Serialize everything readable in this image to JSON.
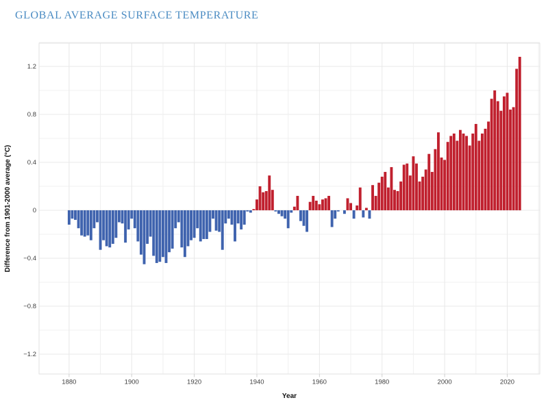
{
  "title": "GLOBAL AVERAGE SURFACE TEMPERATURE",
  "chart_data": {
    "type": "bar",
    "title": "GLOBAL AVERAGE SURFACE TEMPERATURE",
    "xlabel": "Year",
    "ylabel": "Difference from 1901-2000 average (°C)",
    "x_ticks": [
      1880,
      1900,
      1920,
      1940,
      1960,
      1980,
      2000,
      2020
    ],
    "y_ticks": [
      -1.2,
      -0.8,
      -0.4,
      0,
      0.4,
      0.8,
      1.2
    ],
    "xlim": [
      1870.4,
      2030.4
    ],
    "ylim": [
      -1.366,
      1.394
    ],
    "grid": true,
    "grid_step_x_years": 10,
    "grid_step_y_degrees": 0.2,
    "legend": "none",
    "years": [
      1880,
      1881,
      1882,
      1883,
      1884,
      1885,
      1886,
      1887,
      1888,
      1889,
      1890,
      1891,
      1892,
      1893,
      1894,
      1895,
      1896,
      1897,
      1898,
      1899,
      1900,
      1901,
      1902,
      1903,
      1904,
      1905,
      1906,
      1907,
      1908,
      1909,
      1910,
      1911,
      1912,
      1913,
      1914,
      1915,
      1916,
      1917,
      1918,
      1919,
      1920,
      1921,
      1922,
      1923,
      1924,
      1925,
      1926,
      1927,
      1928,
      1929,
      1930,
      1931,
      1932,
      1933,
      1934,
      1935,
      1936,
      1937,
      1938,
      1939,
      1940,
      1941,
      1942,
      1943,
      1944,
      1945,
      1946,
      1947,
      1948,
      1949,
      1950,
      1951,
      1952,
      1953,
      1954,
      1955,
      1956,
      1957,
      1958,
      1959,
      1960,
      1961,
      1962,
      1963,
      1964,
      1965,
      1966,
      1967,
      1968,
      1969,
      1970,
      1971,
      1972,
      1973,
      1974,
      1975,
      1976,
      1977,
      1978,
      1979,
      1980,
      1981,
      1982,
      1983,
      1984,
      1985,
      1986,
      1987,
      1988,
      1989,
      1990,
      1991,
      1992,
      1993,
      1994,
      1995,
      1996,
      1997,
      1998,
      1999,
      2000,
      2001,
      2002,
      2003,
      2004,
      2005,
      2006,
      2007,
      2008,
      2009,
      2010,
      2011,
      2012,
      2013,
      2014,
      2015,
      2016,
      2017,
      2018,
      2019,
      2020,
      2021,
      2022,
      2023,
      2024
    ],
    "values": [
      -0.12,
      -0.07,
      -0.08,
      -0.15,
      -0.21,
      -0.22,
      -0.21,
      -0.25,
      -0.15,
      -0.1,
      -0.33,
      -0.25,
      -0.3,
      -0.31,
      -0.28,
      -0.23,
      -0.1,
      -0.11,
      -0.27,
      -0.16,
      -0.07,
      -0.15,
      -0.26,
      -0.37,
      -0.45,
      -0.28,
      -0.22,
      -0.38,
      -0.44,
      -0.43,
      -0.39,
      -0.44,
      -0.35,
      -0.32,
      -0.15,
      -0.1,
      -0.31,
      -0.39,
      -0.3,
      -0.25,
      -0.23,
      -0.15,
      -0.26,
      -0.24,
      -0.24,
      -0.18,
      -0.07,
      -0.17,
      -0.18,
      -0.33,
      -0.11,
      -0.07,
      -0.12,
      -0.26,
      -0.11,
      -0.16,
      -0.12,
      -0.01,
      -0.02,
      0.01,
      0.09,
      0.2,
      0.15,
      0.16,
      0.29,
      0.17,
      -0.01,
      -0.03,
      -0.05,
      -0.07,
      -0.15,
      -0.02,
      0.03,
      0.12,
      -0.09,
      -0.13,
      -0.18,
      0.07,
      0.12,
      0.08,
      0.05,
      0.09,
      0.1,
      0.12,
      -0.14,
      -0.07,
      -0.01,
      0.0,
      -0.03,
      0.1,
      0.06,
      -0.07,
      0.04,
      0.19,
      -0.06,
      0.02,
      -0.07,
      0.21,
      0.12,
      0.23,
      0.28,
      0.32,
      0.19,
      0.36,
      0.17,
      0.16,
      0.24,
      0.38,
      0.39,
      0.29,
      0.45,
      0.39,
      0.24,
      0.28,
      0.34,
      0.47,
      0.32,
      0.51,
      0.65,
      0.44,
      0.42,
      0.57,
      0.62,
      0.64,
      0.58,
      0.67,
      0.64,
      0.62,
      0.54,
      0.64,
      0.72,
      0.58,
      0.64,
      0.68,
      0.74,
      0.93,
      1.0,
      0.91,
      0.83,
      0.95,
      0.98,
      0.84,
      0.86,
      1.18,
      1.28
    ],
    "colors": {
      "positive_bar": "#c0202e",
      "negative_bar": "#3f63ae",
      "grid_minor": "#f0f0f0",
      "grid_major": "#e8e8e8",
      "panel_border": "#e2e2e2",
      "tick_mark": "#cfcfcf",
      "tick_text": "#3f3f3f",
      "axis_title_text": "#111111",
      "title_text": "#4a8bc2",
      "background": "#ffffff"
    }
  }
}
